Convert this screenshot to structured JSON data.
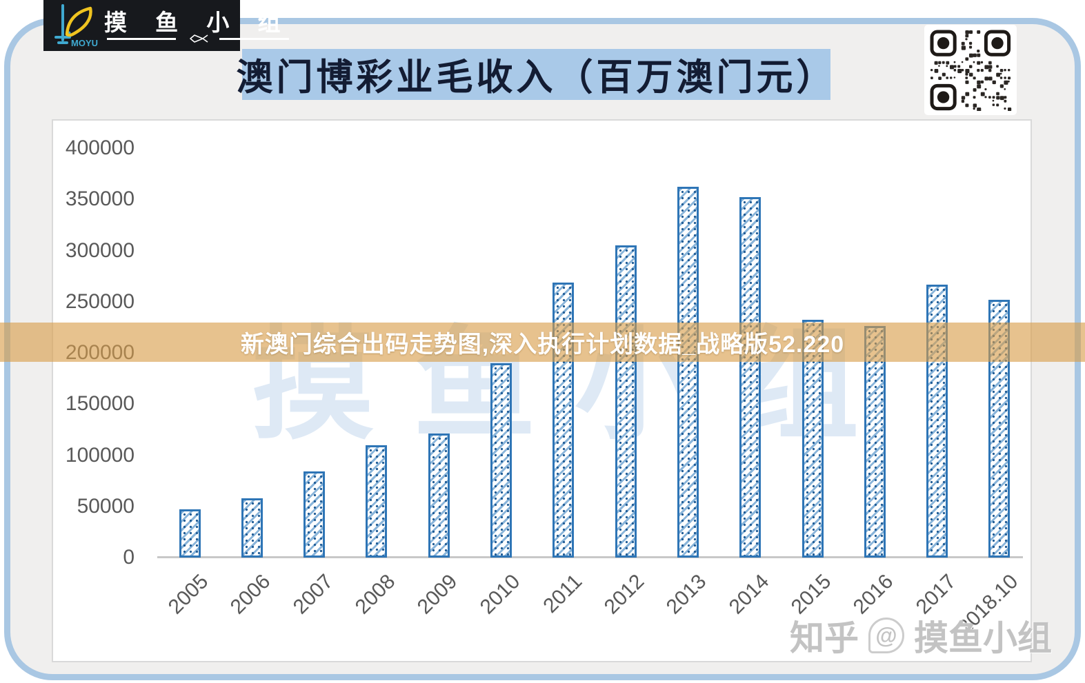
{
  "logo": {
    "brand": "MOYU",
    "group_name": "摸鱼小组",
    "group_name_spaced": "摸 鱼 小 组"
  },
  "header": {
    "title": "澳门博彩业毛收入（百万澳门元）"
  },
  "overlay_banner": {
    "text": "新澳门综合出码走势图,深入执行计划数据_战略版52.220"
  },
  "watermarks": {
    "chart_background": "摸鱼小组",
    "zhihu_site": "知乎",
    "zhihu_at": "@",
    "zhihu_handle": "摸鱼小组"
  },
  "colors": {
    "frame_border": "#a9c7e3",
    "frame_bg": "#f0efee",
    "title_banner_bg": "#a9c9e8",
    "title_text": "#131c33",
    "bar_outline": "#2e75b6",
    "overlay_banner_bg": "rgba(217,156,72,0.62)",
    "axis_text": "#595959",
    "logo_bg": "#17191d",
    "logo_fish": "#f0c420",
    "logo_hook": "#3fa9d0"
  },
  "chart_data": {
    "type": "bar",
    "title": "澳门博彩业毛收入（百万澳门元）",
    "xlabel": "",
    "ylabel": "",
    "categories": [
      "2005",
      "2006",
      "2007",
      "2008",
      "2009",
      "2010",
      "2011",
      "2012",
      "2013",
      "2014",
      "2015",
      "2016",
      "2017",
      "2018.10"
    ],
    "values": [
      47000,
      58000,
      84000,
      110000,
      121000,
      190000,
      269000,
      305000,
      362000,
      352000,
      232000,
      226000,
      267000,
      252000
    ],
    "ylim": [
      0,
      400000
    ],
    "yticks": [
      0,
      50000,
      100000,
      150000,
      200000,
      250000,
      300000,
      350000,
      400000
    ],
    "grid": false,
    "legend": "none",
    "bar_style": "white fill with blue diagonal hatch and dots, blue outline",
    "x_tick_rotation_deg": -45
  }
}
